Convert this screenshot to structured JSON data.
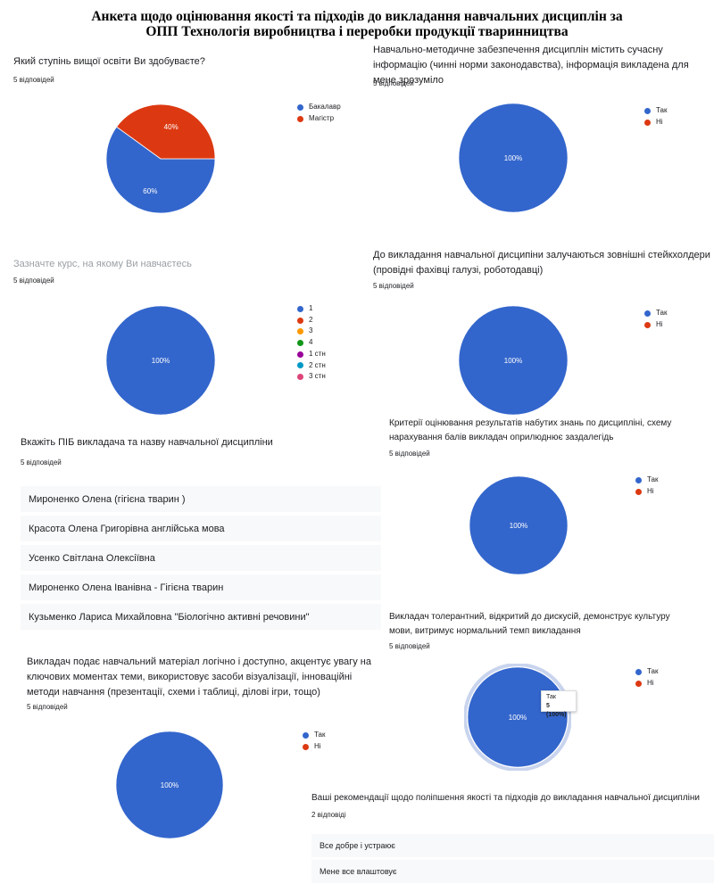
{
  "page": {
    "title_line1": "Анкета щодо оцінювання якості та підходів до викладання навчальних дисциплін за",
    "title_line2": "ОПП Технологія виробництва і переробки продукції тваринництва"
  },
  "questions": {
    "q1": {
      "text": "Який ступінь вищої освіти Ви здобуваєте?",
      "count": "5 відповідей"
    },
    "q2": {
      "text": "Навчально-методичне забезпечення дисциплін містить сучасну інформацію (чинні норми законодавства), інформація викладена для мене зрозуміло",
      "count": "5 відповідей"
    },
    "q3": {
      "text": "Зазначте курс, на якому Ви навчаєтесь",
      "count": "5 відповідей"
    },
    "q4": {
      "text": "До викладання навчальної дисципіни залучаються зовнішні стейкхолдери (провідні фахівці галузі, роботодавці)",
      "count": "5 відповідей"
    },
    "q5": {
      "text": "Вкажіть ПІБ викладача та назву навчальної дисципліни",
      "count": "5 відповідей",
      "answers": [
        "Мироненко Олена (гігієна тварин )",
        "Красота Олена Григорівна англійська мова",
        "Усенко Світлана Олексіївна",
        "Мироненко Олена Іванівна - Гігієна тварин",
        "Кузьменко Лариса Михайловна \"Біологічно активні речовини\""
      ]
    },
    "q6": {
      "text": "Критерії оцінювання результатів набутих знань по дисципліні, схему нарахування балів викладач оприлюднює заздалегідь",
      "count": "5 відповідей"
    },
    "q7": {
      "text": "Викладач толерантний, відкритий до дискусій, демонструє культуру мови, витримує нормальний темп викладання",
      "count": "5 відповідей"
    },
    "q8": {
      "text": "Викладач подає навчальний матеріал логічно і доступно, акцентує увагу на ключових моментах теми, використовує засоби візуалізації, інноваційні методи навчання (презентації, схеми і таблиці, ділові ігри, тощо)",
      "count": "5 відповідей"
    },
    "q9": {
      "text": "Ваші рекомендації щодо поліпшення якості та підходів до викладання навчальної дисципліни",
      "count": "2 відповіді",
      "answers": [
        "Все добре і устраює",
        "Мене все влаштовує"
      ]
    }
  },
  "tooltip": {
    "label": "Так",
    "value": "5 (100%)"
  },
  "chart_data": [
    {
      "id": "q1",
      "type": "pie",
      "categories": [
        "Бакалавр",
        "Магістр"
      ],
      "values": [
        60,
        40
      ],
      "colors": [
        "#3366cc",
        "#dc3912"
      ],
      "labels": [
        "60%",
        "40%"
      ]
    },
    {
      "id": "q2",
      "type": "pie",
      "categories": [
        "Так",
        "Ні"
      ],
      "values": [
        100,
        0
      ],
      "colors": [
        "#3366cc",
        "#dc3912"
      ],
      "labels": [
        "100%"
      ]
    },
    {
      "id": "q3",
      "type": "pie",
      "categories": [
        "1",
        "2",
        "3",
        "4",
        "1 стн",
        "2 стн",
        "3 стн"
      ],
      "values": [
        100,
        0,
        0,
        0,
        0,
        0,
        0
      ],
      "colors": [
        "#3366cc",
        "#dc3912",
        "#ff9900",
        "#109618",
        "#990099",
        "#0099c6",
        "#dd4477"
      ],
      "labels": [
        "100%"
      ]
    },
    {
      "id": "q4",
      "type": "pie",
      "categories": [
        "Так",
        "Ні"
      ],
      "values": [
        100,
        0
      ],
      "colors": [
        "#3366cc",
        "#dc3912"
      ],
      "labels": [
        "100%"
      ]
    },
    {
      "id": "q6",
      "type": "pie",
      "categories": [
        "Так",
        "Ні"
      ],
      "values": [
        100,
        0
      ],
      "colors": [
        "#3366cc",
        "#dc3912"
      ],
      "labels": [
        "100%"
      ]
    },
    {
      "id": "q7",
      "type": "pie",
      "categories": [
        "Так",
        "Ні"
      ],
      "values": [
        100,
        0
      ],
      "colors": [
        "#3366cc",
        "#dc3912"
      ],
      "labels": [
        "100%"
      ],
      "highlighted": true
    },
    {
      "id": "q8",
      "type": "pie",
      "categories": [
        "Так",
        "Ні"
      ],
      "values": [
        100,
        0
      ],
      "colors": [
        "#3366cc",
        "#dc3912"
      ],
      "labels": [
        "100%"
      ]
    }
  ]
}
